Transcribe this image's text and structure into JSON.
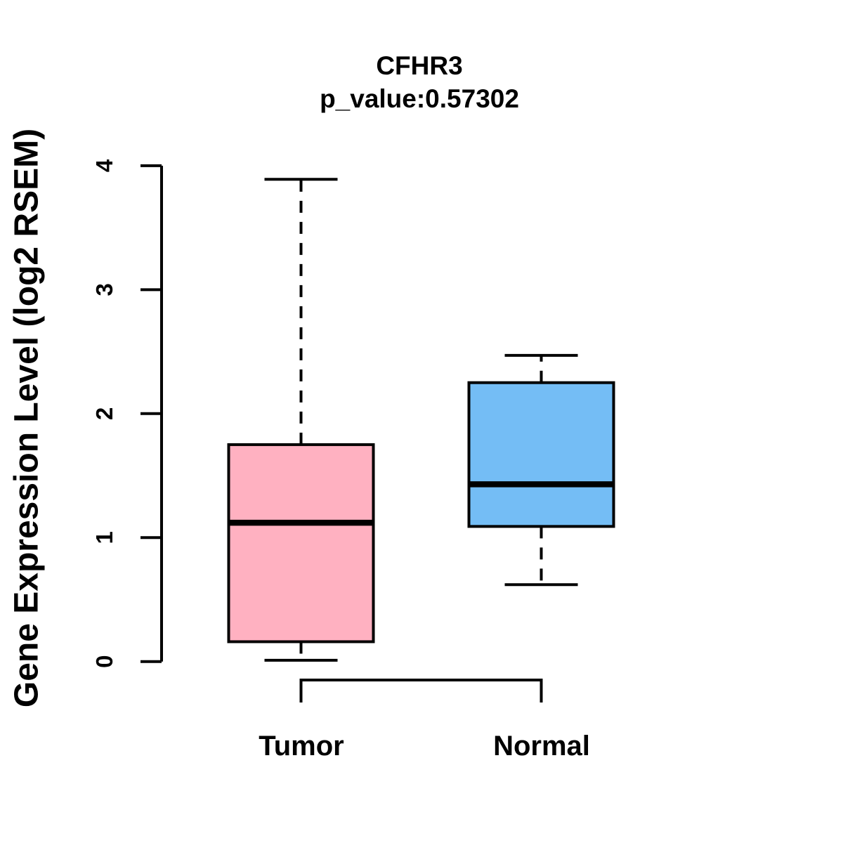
{
  "chart_data": {
    "type": "boxplot",
    "title": "CFHR3",
    "subtitle": "p_value:0.57302",
    "ylabel": "Gene Expression Level (log2 RSEM)",
    "xlabel": "",
    "ylim": [
      0,
      4
    ],
    "yticks": [
      0,
      1,
      2,
      3,
      4
    ],
    "categories": [
      "Tumor",
      "Normal"
    ],
    "grid": false,
    "legend": "none",
    "whisker_line_style": "dashed",
    "box_border_color": "#000000",
    "median_color": "#000000",
    "axis_color": "#000000",
    "background_color": "#ffffff",
    "series": [
      {
        "name": "Tumor",
        "color": "#FFB1C1",
        "whisker_low": 0.01,
        "q1": 0.16,
        "median": 1.12,
        "q3": 1.75,
        "whisker_high": 3.89
      },
      {
        "name": "Normal",
        "color": "#74BDF5",
        "whisker_low": 0.62,
        "q1": 1.09,
        "median": 1.43,
        "q3": 2.25,
        "whisker_high": 2.47
      }
    ]
  }
}
